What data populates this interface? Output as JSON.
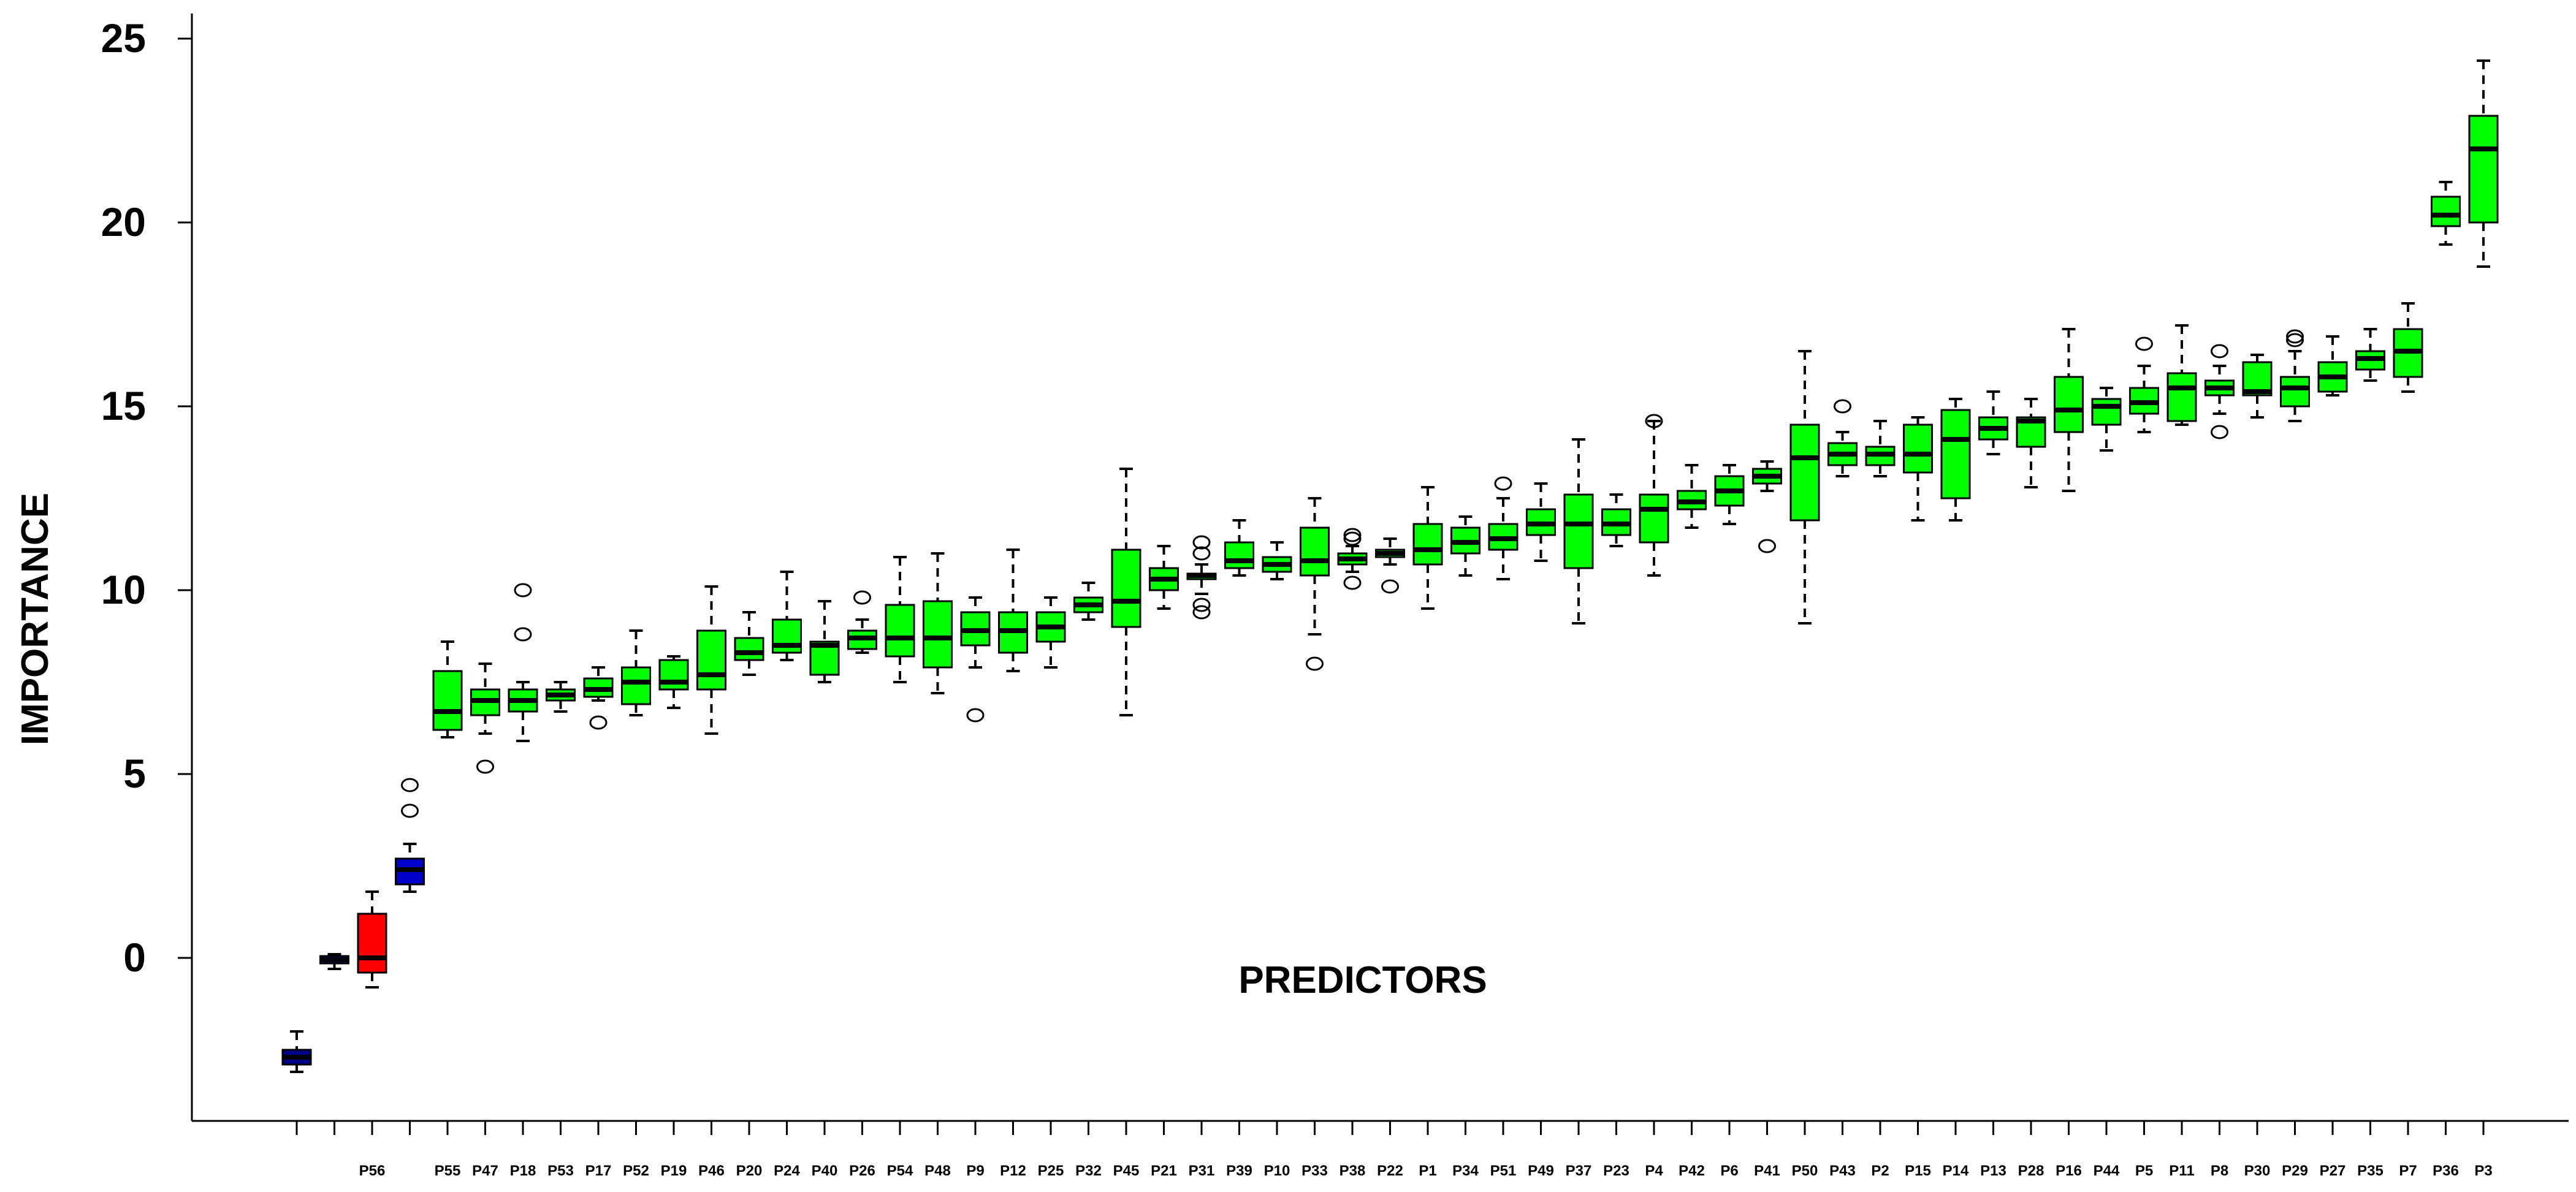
{
  "chart_data": {
    "type": "boxplot",
    "xlabel": "PREDICTORS",
    "ylabel": "IMPORTANCE",
    "ylim": [
      -4.5,
      25.5
    ],
    "yticks": [
      0,
      5,
      10,
      15,
      20,
      25
    ],
    "grid": false,
    "legend": "none",
    "colors": {
      "green": "#00ff00",
      "red": "#ff0000",
      "blue": "#0000cd",
      "navy": "#00008b"
    },
    "tick_labels_shown_every": 1,
    "series": [
      {
        "name": "",
        "show_label": false,
        "color": "navy",
        "min": -3.1,
        "q1": -2.9,
        "median": -2.7,
        "q3": -2.5,
        "max": -2.0,
        "outliers": []
      },
      {
        "name": "",
        "show_label": false,
        "color": "navy",
        "min": -0.3,
        "q1": -0.15,
        "median": -0.05,
        "q3": 0.05,
        "max": 0.1,
        "outliers": []
      },
      {
        "name": "P56",
        "show_label": true,
        "color": "red",
        "min": -0.8,
        "q1": -0.4,
        "median": 0.0,
        "q3": 1.2,
        "max": 1.8,
        "outliers": []
      },
      {
        "name": "",
        "show_label": false,
        "color": "blue",
        "min": 1.8,
        "q1": 2.0,
        "median": 2.4,
        "q3": 2.7,
        "max": 3.1,
        "outliers": [
          4.0,
          4.7
        ]
      },
      {
        "name": "P55",
        "show_label": true,
        "color": "green",
        "min": 6.0,
        "q1": 6.2,
        "median": 6.7,
        "q3": 7.8,
        "max": 8.6,
        "outliers": []
      },
      {
        "name": "P47",
        "show_label": true,
        "color": "green",
        "min": 6.1,
        "q1": 6.6,
        "median": 7.0,
        "q3": 7.3,
        "max": 8.0,
        "outliers": [
          5.2
        ]
      },
      {
        "name": "P18",
        "show_label": true,
        "color": "green",
        "min": 5.9,
        "q1": 6.7,
        "median": 7.0,
        "q3": 7.3,
        "max": 7.5,
        "outliers": [
          8.8,
          10.0
        ]
      },
      {
        "name": "P53",
        "show_label": true,
        "color": "green",
        "min": 6.7,
        "q1": 7.0,
        "median": 7.15,
        "q3": 7.3,
        "max": 7.5,
        "outliers": []
      },
      {
        "name": "P17",
        "show_label": true,
        "color": "green",
        "min": 7.0,
        "q1": 7.1,
        "median": 7.3,
        "q3": 7.6,
        "max": 7.9,
        "outliers": [
          6.4
        ]
      },
      {
        "name": "P52",
        "show_label": true,
        "color": "green",
        "min": 6.6,
        "q1": 6.9,
        "median": 7.5,
        "q3": 7.9,
        "max": 8.9,
        "outliers": []
      },
      {
        "name": "P19",
        "show_label": true,
        "color": "green",
        "min": 6.8,
        "q1": 7.3,
        "median": 7.5,
        "q3": 8.1,
        "max": 8.2,
        "outliers": []
      },
      {
        "name": "P46",
        "show_label": true,
        "color": "green",
        "min": 6.1,
        "q1": 7.3,
        "median": 7.7,
        "q3": 8.9,
        "max": 10.1,
        "outliers": []
      },
      {
        "name": "P20",
        "show_label": true,
        "color": "green",
        "min": 7.7,
        "q1": 8.1,
        "median": 8.3,
        "q3": 8.7,
        "max": 9.4,
        "outliers": []
      },
      {
        "name": "P24",
        "show_label": true,
        "color": "green",
        "min": 8.1,
        "q1": 8.3,
        "median": 8.5,
        "q3": 9.2,
        "max": 10.5,
        "outliers": []
      },
      {
        "name": "P40",
        "show_label": true,
        "color": "green",
        "min": 7.5,
        "q1": 7.7,
        "median": 8.5,
        "q3": 8.6,
        "max": 9.7,
        "outliers": []
      },
      {
        "name": "P26",
        "show_label": true,
        "color": "green",
        "min": 8.3,
        "q1": 8.4,
        "median": 8.7,
        "q3": 8.9,
        "max": 9.2,
        "outliers": [
          9.8
        ]
      },
      {
        "name": "P54",
        "show_label": true,
        "color": "green",
        "min": 7.5,
        "q1": 8.2,
        "median": 8.7,
        "q3": 9.6,
        "max": 10.9,
        "outliers": []
      },
      {
        "name": "P48",
        "show_label": true,
        "color": "green",
        "min": 7.2,
        "q1": 7.9,
        "median": 8.7,
        "q3": 9.7,
        "max": 11.0,
        "outliers": []
      },
      {
        "name": "P9",
        "show_label": true,
        "color": "green",
        "min": 7.9,
        "q1": 8.5,
        "median": 8.9,
        "q3": 9.4,
        "max": 9.8,
        "outliers": [
          6.6
        ]
      },
      {
        "name": "P12",
        "show_label": true,
        "color": "green",
        "min": 7.8,
        "q1": 8.3,
        "median": 8.9,
        "q3": 9.4,
        "max": 11.1,
        "outliers": []
      },
      {
        "name": "P25",
        "show_label": true,
        "color": "green",
        "min": 7.9,
        "q1": 8.6,
        "median": 9.0,
        "q3": 9.4,
        "max": 9.8,
        "outliers": []
      },
      {
        "name": "P32",
        "show_label": true,
        "color": "green",
        "min": 9.2,
        "q1": 9.4,
        "median": 9.6,
        "q3": 9.8,
        "max": 10.2,
        "outliers": []
      },
      {
        "name": "P45",
        "show_label": true,
        "color": "green",
        "min": 6.6,
        "q1": 9.0,
        "median": 9.7,
        "q3": 11.1,
        "max": 13.3,
        "outliers": []
      },
      {
        "name": "P21",
        "show_label": true,
        "color": "green",
        "min": 9.5,
        "q1": 10.0,
        "median": 10.3,
        "q3": 10.6,
        "max": 11.2,
        "outliers": []
      },
      {
        "name": "P31",
        "show_label": true,
        "color": "green",
        "min": 9.9,
        "q1": 10.3,
        "median": 10.4,
        "q3": 10.45,
        "max": 10.7,
        "outliers": [
          9.4,
          9.6,
          11.0,
          11.3
        ]
      },
      {
        "name": "P39",
        "show_label": true,
        "color": "green",
        "min": 10.4,
        "q1": 10.6,
        "median": 10.8,
        "q3": 11.3,
        "max": 11.9,
        "outliers": []
      },
      {
        "name": "P10",
        "show_label": true,
        "color": "green",
        "min": 10.3,
        "q1": 10.5,
        "median": 10.7,
        "q3": 10.9,
        "max": 11.3,
        "outliers": []
      },
      {
        "name": "P33",
        "show_label": true,
        "color": "green",
        "min": 8.8,
        "q1": 10.4,
        "median": 10.8,
        "q3": 11.7,
        "max": 12.5,
        "outliers": [
          8.0
        ]
      },
      {
        "name": "P38",
        "show_label": true,
        "color": "green",
        "min": 10.5,
        "q1": 10.7,
        "median": 10.85,
        "q3": 11.0,
        "max": 11.2,
        "outliers": [
          10.2,
          11.4,
          11.5
        ]
      },
      {
        "name": "P22",
        "show_label": true,
        "color": "green",
        "min": 10.7,
        "q1": 10.9,
        "median": 11.0,
        "q3": 11.1,
        "max": 11.4,
        "outliers": [
          10.1
        ]
      },
      {
        "name": "P1",
        "show_label": true,
        "color": "green",
        "min": 9.5,
        "q1": 10.7,
        "median": 11.1,
        "q3": 11.8,
        "max": 12.8,
        "outliers": []
      },
      {
        "name": "P34",
        "show_label": true,
        "color": "green",
        "min": 10.4,
        "q1": 11.0,
        "median": 11.3,
        "q3": 11.7,
        "max": 12.0,
        "outliers": []
      },
      {
        "name": "P51",
        "show_label": true,
        "color": "green",
        "min": 10.3,
        "q1": 11.1,
        "median": 11.4,
        "q3": 11.8,
        "max": 12.5,
        "outliers": [
          12.9
        ]
      },
      {
        "name": "P49",
        "show_label": true,
        "color": "green",
        "min": 10.8,
        "q1": 11.5,
        "median": 11.8,
        "q3": 12.2,
        "max": 12.9,
        "outliers": []
      },
      {
        "name": "P37",
        "show_label": true,
        "color": "green",
        "min": 9.1,
        "q1": 10.6,
        "median": 11.8,
        "q3": 12.6,
        "max": 14.1,
        "outliers": []
      },
      {
        "name": "P23",
        "show_label": true,
        "color": "green",
        "min": 11.2,
        "q1": 11.5,
        "median": 11.8,
        "q3": 12.2,
        "max": 12.6,
        "outliers": []
      },
      {
        "name": "P4",
        "show_label": true,
        "color": "green",
        "min": 10.4,
        "q1": 11.3,
        "median": 12.2,
        "q3": 12.6,
        "max": 14.6,
        "outliers": [
          14.6
        ]
      },
      {
        "name": "P42",
        "show_label": true,
        "color": "green",
        "min": 11.7,
        "q1": 12.2,
        "median": 12.4,
        "q3": 12.7,
        "max": 13.4,
        "outliers": []
      },
      {
        "name": "P6",
        "show_label": true,
        "color": "green",
        "min": 11.8,
        "q1": 12.3,
        "median": 12.7,
        "q3": 13.1,
        "max": 13.4,
        "outliers": []
      },
      {
        "name": "P41",
        "show_label": true,
        "color": "green",
        "min": 12.7,
        "q1": 12.9,
        "median": 13.1,
        "q3": 13.3,
        "max": 13.5,
        "outliers": [
          11.2
        ]
      },
      {
        "name": "P50",
        "show_label": true,
        "color": "green",
        "min": 9.1,
        "q1": 11.9,
        "median": 13.6,
        "q3": 14.5,
        "max": 16.5,
        "outliers": []
      },
      {
        "name": "P43",
        "show_label": true,
        "color": "green",
        "min": 13.1,
        "q1": 13.4,
        "median": 13.7,
        "q3": 14.0,
        "max": 14.3,
        "outliers": [
          15.0
        ]
      },
      {
        "name": "P2",
        "show_label": true,
        "color": "green",
        "min": 13.1,
        "q1": 13.4,
        "median": 13.7,
        "q3": 13.9,
        "max": 14.6,
        "outliers": []
      },
      {
        "name": "P15",
        "show_label": true,
        "color": "green",
        "min": 11.9,
        "q1": 13.2,
        "median": 13.7,
        "q3": 14.5,
        "max": 14.7,
        "outliers": []
      },
      {
        "name": "P14",
        "show_label": true,
        "color": "green",
        "min": 11.9,
        "q1": 12.5,
        "median": 14.1,
        "q3": 14.9,
        "max": 15.2,
        "outliers": []
      },
      {
        "name": "P13",
        "show_label": true,
        "color": "green",
        "min": 13.7,
        "q1": 14.1,
        "median": 14.4,
        "q3": 14.7,
        "max": 15.4,
        "outliers": []
      },
      {
        "name": "P28",
        "show_label": true,
        "color": "green",
        "min": 12.8,
        "q1": 13.9,
        "median": 14.6,
        "q3": 14.7,
        "max": 15.2,
        "outliers": []
      },
      {
        "name": "P16",
        "show_label": true,
        "color": "green",
        "min": 12.7,
        "q1": 14.3,
        "median": 14.9,
        "q3": 15.8,
        "max": 17.1,
        "outliers": []
      },
      {
        "name": "P44",
        "show_label": true,
        "color": "green",
        "min": 13.8,
        "q1": 14.5,
        "median": 15.0,
        "q3": 15.2,
        "max": 15.5,
        "outliers": []
      },
      {
        "name": "P5",
        "show_label": true,
        "color": "green",
        "min": 14.3,
        "q1": 14.8,
        "median": 15.1,
        "q3": 15.5,
        "max": 16.1,
        "outliers": [
          16.7
        ]
      },
      {
        "name": "P11",
        "show_label": true,
        "color": "green",
        "min": 14.5,
        "q1": 14.6,
        "median": 15.5,
        "q3": 15.9,
        "max": 17.2,
        "outliers": []
      },
      {
        "name": "P8",
        "show_label": true,
        "color": "green",
        "min": 14.8,
        "q1": 15.3,
        "median": 15.5,
        "q3": 15.7,
        "max": 16.1,
        "outliers": [
          14.3,
          16.5
        ]
      },
      {
        "name": "P30",
        "show_label": true,
        "color": "green",
        "min": 14.7,
        "q1": 15.3,
        "median": 15.4,
        "q3": 16.2,
        "max": 16.4,
        "outliers": []
      },
      {
        "name": "P29",
        "show_label": true,
        "color": "green",
        "min": 14.6,
        "q1": 15.0,
        "median": 15.5,
        "q3": 15.8,
        "max": 16.5,
        "outliers": [
          16.8,
          16.9
        ]
      },
      {
        "name": "P27",
        "show_label": true,
        "color": "green",
        "min": 15.3,
        "q1": 15.4,
        "median": 15.8,
        "q3": 16.2,
        "max": 16.9,
        "outliers": []
      },
      {
        "name": "P35",
        "show_label": true,
        "color": "green",
        "min": 15.7,
        "q1": 16.0,
        "median": 16.3,
        "q3": 16.5,
        "max": 17.1,
        "outliers": []
      },
      {
        "name": "P7",
        "show_label": true,
        "color": "green",
        "min": 15.4,
        "q1": 15.8,
        "median": 16.5,
        "q3": 17.1,
        "max": 17.8,
        "outliers": []
      },
      {
        "name": "P36",
        "show_label": true,
        "color": "green",
        "min": 19.4,
        "q1": 19.9,
        "median": 20.2,
        "q3": 20.7,
        "max": 21.1,
        "outliers": []
      },
      {
        "name": "P3",
        "show_label": true,
        "color": "green",
        "min": 18.8,
        "q1": 20.0,
        "median": 22.0,
        "q3": 22.9,
        "max": 24.4,
        "outliers": []
      }
    ]
  }
}
